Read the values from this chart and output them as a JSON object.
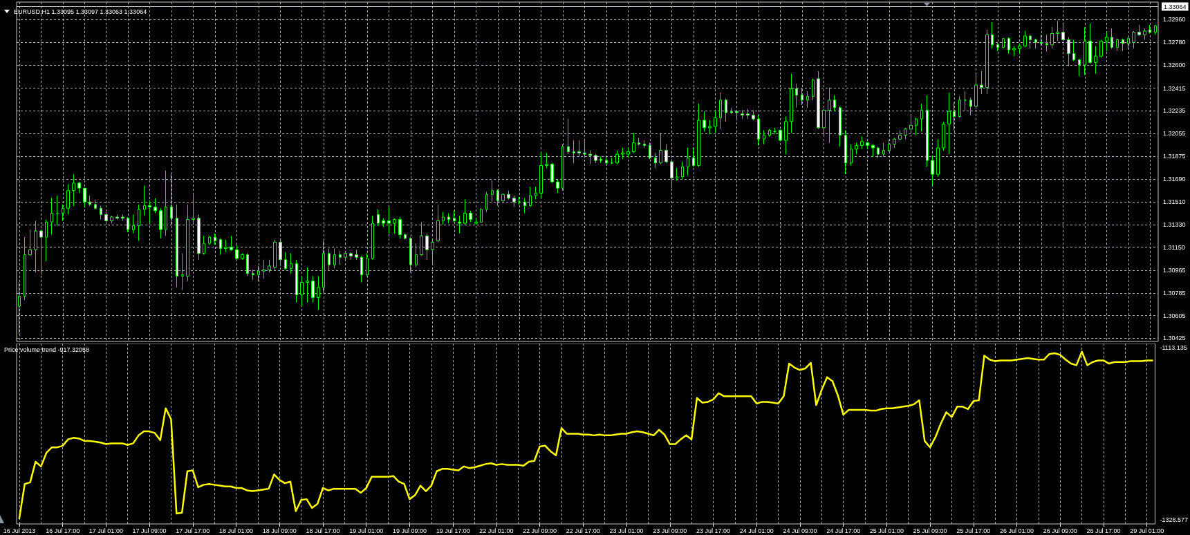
{
  "chart_data": [
    {
      "type": "candlestick",
      "title": "EURUSD,H1 1.33095 1.33097 1.33063 1.33064",
      "categories": [
        null,
        null,
        null,
        null,
        null,
        null,
        null,
        null,
        null,
        null,
        null,
        null,
        null,
        null,
        null,
        null,
        null,
        null,
        null,
        null,
        null,
        null,
        null,
        null,
        null,
        null,
        null,
        null,
        null,
        null,
        null,
        null,
        null,
        null,
        null,
        null,
        null,
        null,
        null,
        null,
        null,
        null,
        null,
        null,
        null,
        null,
        null,
        null,
        null,
        null,
        null,
        null,
        null,
        null,
        null,
        null,
        null,
        null,
        null,
        null,
        null,
        null,
        null,
        null,
        null,
        null,
        null,
        null,
        null,
        null,
        null,
        null,
        null,
        null,
        null,
        null,
        null,
        null,
        null,
        null,
        null,
        null,
        null,
        null,
        null,
        null,
        null,
        null,
        null,
        null,
        null,
        null,
        null,
        null,
        null,
        null,
        null,
        null,
        null,
        null,
        null,
        null,
        null,
        null,
        null,
        null,
        null,
        null,
        null,
        null,
        null,
        null,
        null,
        null,
        null,
        null,
        null,
        null,
        null,
        null,
        null,
        null,
        null,
        null,
        null,
        null,
        null,
        null,
        null,
        null,
        null,
        null,
        null,
        null,
        null,
        null,
        null,
        null,
        null,
        null,
        null,
        null,
        null,
        null,
        null,
        null,
        null,
        null,
        null,
        null,
        null,
        null,
        null,
        null,
        null,
        null,
        null,
        null,
        null,
        null,
        null,
        null,
        null,
        null,
        null,
        null,
        null,
        null,
        null,
        null,
        null,
        null,
        null,
        null,
        null,
        null,
        null,
        null,
        null,
        null,
        null,
        null,
        null,
        null,
        null,
        null,
        null,
        null,
        null,
        null,
        null,
        null,
        null,
        null,
        null,
        null,
        null,
        null,
        null,
        null,
        null,
        null,
        null,
        null,
        null,
        null,
        null,
        null,
        null,
        null
      ],
      "ohlc": [
        [
          1.3068,
          1.3087,
          1.3046,
          1.3076
        ],
        [
          1.3076,
          1.3123,
          1.3073,
          1.3109
        ],
        [
          1.3109,
          1.3129,
          1.3108,
          1.3113
        ],
        [
          1.3113,
          1.3136,
          1.3095,
          1.3128
        ],
        [
          1.3128,
          1.3129,
          1.3093,
          1.3123
        ],
        [
          1.3123,
          1.3137,
          1.3104,
          1.3135
        ],
        [
          1.3135,
          1.3154,
          1.3125,
          1.3142
        ],
        [
          1.3142,
          1.3156,
          1.3132,
          1.3142
        ],
        [
          1.3142,
          1.3149,
          1.3136,
          1.3146
        ],
        [
          1.3146,
          1.3165,
          1.3141,
          1.316
        ],
        [
          1.316,
          1.3173,
          1.3148,
          1.3166
        ],
        [
          1.3166,
          1.3167,
          1.3158,
          1.3162
        ],
        [
          1.3162,
          1.3162,
          1.3147,
          1.3151
        ],
        [
          1.3151,
          1.3156,
          1.3148,
          1.3149
        ],
        [
          1.3149,
          1.3153,
          1.3145,
          1.3146
        ],
        [
          1.3146,
          1.3148,
          1.3137,
          1.3141
        ],
        [
          1.3141,
          1.3143,
          1.3133,
          1.3136
        ],
        [
          1.3136,
          1.314,
          1.3134,
          1.3139
        ],
        [
          1.3139,
          1.3141,
          1.3137,
          1.3138
        ],
        [
          1.3139,
          1.3141,
          1.3136,
          1.3138
        ],
        [
          1.3138,
          1.3139,
          1.3127,
          1.3129
        ],
        [
          1.3129,
          1.3141,
          1.3126,
          1.3132
        ],
        [
          1.3132,
          1.3149,
          1.312,
          1.3145
        ],
        [
          1.3145,
          1.3164,
          1.314,
          1.3148
        ],
        [
          1.3148,
          1.3152,
          1.3134,
          1.3147
        ],
        [
          1.3147,
          1.3154,
          1.3142,
          1.3144
        ],
        [
          1.3144,
          1.3146,
          1.3122,
          1.3129
        ],
        [
          1.3129,
          1.3176,
          1.3124,
          1.3147
        ],
        [
          1.3147,
          1.3173,
          1.3133,
          1.3138
        ],
        [
          1.3138,
          1.3149,
          1.3083,
          1.3092
        ],
        [
          1.3092,
          1.311,
          1.3081,
          1.3093
        ],
        [
          1.3092,
          1.3149,
          1.3088,
          1.3137
        ],
        [
          1.3137,
          1.3158,
          1.3133,
          1.3138
        ],
        [
          1.3138,
          1.3141,
          1.3105,
          1.311
        ],
        [
          1.311,
          1.3124,
          1.3109,
          1.3118
        ],
        [
          1.3118,
          1.3124,
          1.3117,
          1.3123
        ],
        [
          1.3123,
          1.3126,
          1.3117,
          1.312
        ],
        [
          1.3121,
          1.3122,
          1.3109,
          1.3114
        ],
        [
          1.3114,
          1.3121,
          1.3111,
          1.3115
        ],
        [
          1.3115,
          1.3124,
          1.3112,
          1.3113
        ],
        [
          1.3113,
          1.3117,
          1.3105,
          1.3106
        ],
        [
          1.3106,
          1.311,
          1.3105,
          1.3109
        ],
        [
          1.3109,
          1.311,
          1.3092,
          1.3094
        ],
        [
          1.3094,
          1.3097,
          1.3089,
          1.3093
        ],
        [
          1.3093,
          1.31,
          1.3088,
          1.3096
        ],
        [
          1.3096,
          1.3105,
          1.309,
          1.3097
        ],
        [
          1.3097,
          1.3105,
          1.3095,
          1.31
        ],
        [
          1.3099,
          1.3121,
          1.3097,
          1.3119
        ],
        [
          1.3119,
          1.3121,
          1.31,
          1.3105
        ],
        [
          1.3105,
          1.3111,
          1.3097,
          1.3098
        ],
        [
          1.3098,
          1.311,
          1.3094,
          1.3102
        ],
        [
          1.3102,
          1.3105,
          1.3071,
          1.3077
        ],
        [
          1.3077,
          1.3092,
          1.3068,
          1.3087
        ],
        [
          1.3087,
          1.3099,
          1.3071,
          1.3088
        ],
        [
          1.3088,
          1.3092,
          1.3071,
          1.3075
        ],
        [
          1.3075,
          1.3092,
          1.3065,
          1.3083
        ],
        [
          1.3083,
          1.312,
          1.3079,
          1.311
        ],
        [
          1.311,
          1.3114,
          1.3096,
          1.3101
        ],
        [
          1.3101,
          1.3114,
          1.3098,
          1.3109
        ],
        [
          1.3109,
          1.3112,
          1.3101,
          1.3107
        ],
        [
          1.3107,
          1.3112,
          1.3105,
          1.311
        ],
        [
          1.311,
          1.3111,
          1.3105,
          1.3108
        ],
        [
          1.3109,
          1.3113,
          1.3105,
          1.3107
        ],
        [
          1.3107,
          1.3108,
          1.3087,
          1.3093
        ],
        [
          1.3093,
          1.311,
          1.3092,
          1.3106
        ],
        [
          1.3106,
          1.314,
          1.3105,
          1.3134
        ],
        [
          1.3141,
          1.3145,
          1.3132,
          1.3134
        ],
        [
          1.3136,
          1.3138,
          1.3131,
          1.3134
        ],
        [
          1.3136,
          1.3147,
          1.3126,
          1.3134
        ],
        [
          1.3134,
          1.3138,
          1.3126,
          1.3137
        ],
        [
          1.3137,
          1.3139,
          1.3122,
          1.3125
        ],
        [
          1.3125,
          1.3126,
          1.3121,
          1.3122
        ],
        [
          1.3122,
          1.3123,
          1.3095,
          1.3101
        ],
        [
          1.3101,
          1.3118,
          1.3099,
          1.3109
        ],
        [
          1.3109,
          1.3135,
          1.3108,
          1.3124
        ],
        [
          1.3124,
          1.3126,
          1.3105,
          1.3113
        ],
        [
          1.3113,
          1.3121,
          1.3101,
          1.3119
        ],
        [
          1.312,
          1.3149,
          1.3119,
          1.3136
        ],
        [
          1.3136,
          1.3143,
          1.3133,
          1.3139
        ],
        [
          1.3139,
          1.3142,
          1.3134,
          1.3137
        ],
        [
          1.3138,
          1.3144,
          1.3135,
          1.3136
        ],
        [
          1.3135,
          1.314,
          1.3126,
          1.3134
        ],
        [
          1.3134,
          1.3153,
          1.3133,
          1.3142
        ],
        [
          1.3142,
          1.3144,
          1.3135,
          1.3137
        ],
        [
          1.3134,
          1.3138,
          1.3133,
          1.3135
        ],
        [
          1.3135,
          1.3146,
          1.3134,
          1.3145
        ],
        [
          1.3145,
          1.3159,
          1.3143,
          1.3157
        ],
        [
          1.3157,
          1.3168,
          1.3151,
          1.316
        ],
        [
          1.316,
          1.3161,
          1.3148,
          1.3152
        ],
        [
          1.3152,
          1.3158,
          1.315,
          1.3157
        ],
        [
          1.3157,
          1.316,
          1.3153,
          1.3154
        ],
        [
          1.3154,
          1.3156,
          1.3147,
          1.3151
        ],
        [
          1.3151,
          1.3155,
          1.3149,
          1.3151
        ],
        [
          1.3151,
          1.3154,
          1.3142,
          1.3148
        ],
        [
          1.3148,
          1.3163,
          1.3147,
          1.3156
        ],
        [
          1.3156,
          1.3163,
          1.3153,
          1.3158
        ],
        [
          1.3158,
          1.319,
          1.3154,
          1.318
        ],
        [
          1.318,
          1.319,
          1.3178,
          1.3181
        ],
        [
          1.3181,
          1.3182,
          1.3166,
          1.3167
        ],
        [
          1.3167,
          1.3169,
          1.3158,
          1.3162
        ],
        [
          1.3162,
          1.3197,
          1.316,
          1.3195
        ],
        [
          1.3195,
          1.3217,
          1.3189,
          1.3191
        ],
        [
          1.3191,
          1.32,
          1.3182,
          1.319
        ],
        [
          1.3191,
          1.32,
          1.3187,
          1.319
        ],
        [
          1.319,
          1.32,
          1.3187,
          1.3189
        ],
        [
          1.3189,
          1.3192,
          1.3181,
          1.3188
        ],
        [
          1.3188,
          1.3189,
          1.3182,
          1.3184
        ],
        [
          1.3185,
          1.3187,
          1.3182,
          1.3184
        ],
        [
          1.3184,
          1.3186,
          1.3181,
          1.3182
        ],
        [
          1.3182,
          1.3186,
          1.3181,
          1.3182
        ],
        [
          1.3182,
          1.3192,
          1.3181,
          1.3189
        ],
        [
          1.3189,
          1.3194,
          1.3185,
          1.319
        ],
        [
          1.3189,
          1.3194,
          1.3186,
          1.3191
        ],
        [
          1.3191,
          1.3206,
          1.319,
          1.3198
        ],
        [
          1.3198,
          1.3202,
          1.3196,
          1.3197
        ],
        [
          1.3197,
          1.32,
          1.3194,
          1.3196
        ],
        [
          1.3196,
          1.3198,
          1.3185,
          1.3186
        ],
        [
          1.3186,
          1.319,
          1.3178,
          1.3182
        ],
        [
          1.3182,
          1.3206,
          1.3181,
          1.3192
        ],
        [
          1.3192,
          1.3197,
          1.3182,
          1.3183
        ],
        [
          1.3183,
          1.3185,
          1.3162,
          1.317
        ],
        [
          1.317,
          1.3178,
          1.3168,
          1.3171
        ],
        [
          1.3171,
          1.3183,
          1.3169,
          1.3179
        ],
        [
          1.3179,
          1.3194,
          1.3172,
          1.3186
        ],
        [
          1.3186,
          1.3194,
          1.3179,
          1.318
        ],
        [
          1.318,
          1.3229,
          1.3179,
          1.3216
        ],
        [
          1.3216,
          1.3223,
          1.3207,
          1.321
        ],
        [
          1.321,
          1.3216,
          1.3205,
          1.3211
        ],
        [
          1.3211,
          1.3224,
          1.3206,
          1.3218
        ],
        [
          1.3218,
          1.3238,
          1.3209,
          1.3232
        ],
        [
          1.3232,
          1.3233,
          1.3215,
          1.3222
        ],
        [
          1.3223,
          1.3226,
          1.3221,
          1.3222
        ],
        [
          1.3223,
          1.3224,
          1.3216,
          1.3222
        ],
        [
          1.3221,
          1.3224,
          1.3217,
          1.322
        ],
        [
          1.3221,
          1.3225,
          1.3217,
          1.322
        ],
        [
          1.322,
          1.3224,
          1.3216,
          1.3217
        ],
        [
          1.3217,
          1.322,
          1.3196,
          1.3201
        ],
        [
          1.3201,
          1.3208,
          1.3197,
          1.3204
        ],
        [
          1.3204,
          1.3209,
          1.3203,
          1.3208
        ],
        [
          1.3207,
          1.321,
          1.3205,
          1.3207
        ],
        [
          1.3208,
          1.3209,
          1.3199,
          1.32
        ],
        [
          1.32,
          1.3219,
          1.3189,
          1.3215
        ],
        [
          1.3215,
          1.3253,
          1.3206,
          1.3241
        ],
        [
          1.3241,
          1.3245,
          1.3226,
          1.3236
        ],
        [
          1.3236,
          1.3241,
          1.3228,
          1.3232
        ],
        [
          1.3232,
          1.3239,
          1.3226,
          1.3235
        ],
        [
          1.3235,
          1.3249,
          1.3232,
          1.3248
        ],
        [
          1.3249,
          1.3255,
          1.3209,
          1.321
        ],
        [
          1.321,
          1.3225,
          1.3203,
          1.3224
        ],
        [
          1.3224,
          1.3242,
          1.3198,
          1.3232
        ],
        [
          1.3232,
          1.3236,
          1.3223,
          1.3226
        ],
        [
          1.3226,
          1.3227,
          1.3195,
          1.3204
        ],
        [
          1.3204,
          1.3208,
          1.3173,
          1.3182
        ],
        [
          1.3182,
          1.3197,
          1.318,
          1.3193
        ],
        [
          1.3193,
          1.3198,
          1.3189,
          1.3196
        ],
        [
          1.3196,
          1.3203,
          1.3193,
          1.3199
        ],
        [
          1.3198,
          1.3199,
          1.3193,
          1.3196
        ],
        [
          1.3196,
          1.3197,
          1.3187,
          1.3194
        ],
        [
          1.3194,
          1.3195,
          1.3186,
          1.3189
        ],
        [
          1.3189,
          1.3198,
          1.3187,
          1.3192
        ],
        [
          1.3192,
          1.32,
          1.3191,
          1.3197
        ],
        [
          1.3197,
          1.3202,
          1.3194,
          1.3201
        ],
        [
          1.3201,
          1.3208,
          1.32,
          1.3204
        ],
        [
          1.3204,
          1.321,
          1.3201,
          1.3209
        ],
        [
          1.3209,
          1.322,
          1.3208,
          1.3212
        ],
        [
          1.3212,
          1.3218,
          1.3204,
          1.3217
        ],
        [
          1.3217,
          1.3229,
          1.3207,
          1.3224
        ],
        [
          1.3224,
          1.3236,
          1.3179,
          1.3184
        ],
        [
          1.3184,
          1.3188,
          1.3164,
          1.3173
        ],
        [
          1.3173,
          1.3201,
          1.3171,
          1.3194
        ],
        [
          1.3194,
          1.3215,
          1.3192,
          1.3213
        ],
        [
          1.3213,
          1.3238,
          1.3189,
          1.3223
        ],
        [
          1.3223,
          1.323,
          1.3208,
          1.3219
        ],
        [
          1.3219,
          1.3235,
          1.3218,
          1.3232
        ],
        [
          1.3232,
          1.3239,
          1.3224,
          1.3232
        ],
        [
          1.3232,
          1.3234,
          1.322,
          1.3227
        ],
        [
          1.3227,
          1.3253,
          1.3225,
          1.3244
        ],
        [
          1.3244,
          1.3255,
          1.3237,
          1.3242
        ],
        [
          1.3242,
          1.3288,
          1.3237,
          1.3284
        ],
        [
          1.3284,
          1.3294,
          1.3273,
          1.3276
        ],
        [
          1.3276,
          1.3277,
          1.3271,
          1.3274
        ],
        [
          1.3274,
          1.3281,
          1.3273,
          1.3281
        ],
        [
          1.3281,
          1.3282,
          1.3269,
          1.3272
        ],
        [
          1.3272,
          1.3275,
          1.3267,
          1.3273
        ],
        [
          1.3273,
          1.3277,
          1.3269,
          1.3275
        ],
        [
          1.3275,
          1.3287,
          1.3274,
          1.3283
        ],
        [
          1.3283,
          1.3284,
          1.3273,
          1.328
        ],
        [
          1.328,
          1.3281,
          1.3273,
          1.3278
        ],
        [
          1.3278,
          1.3284,
          1.3275,
          1.3277
        ],
        [
          1.3277,
          1.3284,
          1.3271,
          1.3276
        ],
        [
          1.3276,
          1.329,
          1.3273,
          1.3285
        ],
        [
          1.3285,
          1.3295,
          1.3279,
          1.3286
        ],
        [
          1.3286,
          1.3293,
          1.3279,
          1.328
        ],
        [
          1.328,
          1.3282,
          1.3259,
          1.3269
        ],
        [
          1.3269,
          1.328,
          1.3263,
          1.3264
        ],
        [
          1.3264,
          1.3265,
          1.3251,
          1.326
        ],
        [
          1.326,
          1.329,
          1.3252,
          1.3279
        ],
        [
          1.3279,
          1.3293,
          1.3261,
          1.3262
        ],
        [
          1.3262,
          1.3275,
          1.3253,
          1.3267
        ],
        [
          1.3267,
          1.328,
          1.3266,
          1.3279
        ],
        [
          1.3279,
          1.3286,
          1.3271,
          1.3282
        ],
        [
          1.3282,
          1.3289,
          1.3273,
          1.3274
        ],
        [
          1.3274,
          1.3281,
          1.3271,
          1.328
        ],
        [
          1.328,
          1.3281,
          1.3271,
          1.3277
        ],
        [
          1.3277,
          1.3282,
          1.3273,
          1.3281
        ],
        [
          1.3278,
          1.3287,
          1.3273,
          1.3286
        ],
        [
          1.3286,
          1.3292,
          1.3283,
          1.3284
        ],
        [
          1.3284,
          1.3289,
          1.328,
          1.3287
        ],
        [
          1.3288,
          1.3292,
          1.3285,
          1.3286
        ],
        [
          1.3286,
          1.3292,
          1.3284,
          1.3291
        ]
      ],
      "color": "#00ff00",
      "ylim": [
        1.304,
        1.331
      ],
      "yticks": [
        1.30425,
        1.30605,
        1.30785,
        1.30965,
        {
          "value": 1.3115,
          "label": "1.31150"
        },
        {
          "value": 1.3133,
          "label": "1.31330"
        },
        {
          "value": 1.3151,
          "label": "1.31510"
        },
        {
          "value": 1.3169,
          "label": "1.31690"
        },
        1.31875,
        1.32055,
        1.32235,
        1.32415,
        {
          "value": 1.326,
          "label": "1.32600"
        },
        {
          "value": 1.3278,
          "label": "1.32780"
        },
        {
          "value": 1.3296,
          "label": "1.32960"
        }
      ],
      "ref_lines": [
        {
          "axis": "y",
          "value": 1.33064,
          "label": "1.33064",
          "color": "#c0c8d0"
        }
      ],
      "grid": true,
      "tick_labels": "y"
    },
    {
      "type": "line",
      "title": "Price volume trend -917.32058",
      "categories": [
        "16 Jul 2013",
        null,
        null,
        null,
        null,
        null,
        null,
        null,
        "16 Jul 17:00",
        null,
        null,
        null,
        null,
        null,
        null,
        null,
        "17 Jul 01:00",
        null,
        null,
        null,
        null,
        null,
        null,
        null,
        "17 Jul 09:00",
        null,
        null,
        null,
        null,
        null,
        null,
        null,
        "17 Jul 17:00",
        null,
        null,
        null,
        null,
        null,
        null,
        null,
        "18 Jul 01:00",
        null,
        null,
        null,
        null,
        null,
        null,
        null,
        "18 Jul 09:00",
        null,
        null,
        null,
        null,
        null,
        null,
        null,
        "18 Jul 17:00",
        null,
        null,
        null,
        null,
        null,
        null,
        null,
        "19 Jul 01:00",
        null,
        null,
        null,
        null,
        null,
        null,
        null,
        "19 Jul 09:00",
        null,
        null,
        null,
        null,
        null,
        null,
        null,
        "19 Jul 17:00",
        null,
        null,
        null,
        null,
        null,
        null,
        null,
        "22 Jul 01:00",
        null,
        null,
        null,
        null,
        null,
        null,
        null,
        "22 Jul 09:00",
        null,
        null,
        null,
        null,
        null,
        null,
        null,
        "22 Jul 17:00",
        null,
        null,
        null,
        null,
        null,
        null,
        null,
        "23 Jul 01:00",
        null,
        null,
        null,
        null,
        null,
        null,
        null,
        "23 Jul 09:00",
        null,
        null,
        null,
        null,
        null,
        null,
        null,
        "23 Jul 17:00",
        null,
        null,
        null,
        null,
        null,
        null,
        null,
        "24 Jul 01:00",
        null,
        null,
        null,
        null,
        null,
        null,
        null,
        "24 Jul 09:00",
        null,
        null,
        null,
        null,
        null,
        null,
        null,
        "24 Jul 17:00",
        null,
        null,
        null,
        null,
        null,
        null,
        null,
        "25 Jul 01:00",
        null,
        null,
        null,
        null,
        null,
        null,
        null,
        "25 Jul 09:00",
        null,
        null,
        null,
        null,
        null,
        null,
        null,
        "25 Jul 17:00",
        null,
        null,
        null,
        null,
        null,
        null,
        null,
        "26 Jul 01:00",
        null,
        null,
        null,
        null,
        null,
        null,
        null,
        "26 Jul 09:00",
        null,
        null,
        null,
        null,
        null,
        null,
        null,
        "26 Jul 17:00",
        null,
        null,
        null,
        null,
        null,
        null,
        null,
        "29 Jul 01:00",
        null
      ],
      "series": [
        {
          "color": "#ffff00",
          "values": [
            -1327,
            -1284,
            -1282,
            -1256,
            -1262,
            -1245,
            -1238,
            -1238,
            -1236,
            -1228,
            -1226,
            -1227,
            -1230,
            -1230,
            -1231,
            -1232,
            -1234,
            -1233,
            -1233,
            -1233,
            -1235,
            -1233,
            -1223,
            -1218,
            -1218,
            -1220,
            -1229,
            -1189,
            -1203,
            -1321,
            -1320,
            -1268,
            -1267,
            -1288,
            -1285,
            -1284,
            -1285,
            -1286,
            -1287,
            -1287,
            -1289,
            -1289,
            -1292,
            -1293,
            -1292,
            -1291,
            -1290,
            -1272,
            -1279,
            -1283,
            -1281,
            -1318,
            -1304,
            -1303,
            -1314,
            -1309,
            -1289,
            -1292,
            -1290,
            -1290,
            -1290,
            -1290,
            -1290,
            -1295,
            -1289,
            -1275,
            -1275,
            -1275,
            -1275,
            -1274,
            -1281,
            -1284,
            -1303,
            -1298,
            -1286,
            -1293,
            -1286,
            -1268,
            -1265,
            -1265,
            -1266,
            -1267,
            -1262,
            -1264,
            -1263,
            -1261,
            -1259,
            -1258,
            -1260,
            -1259,
            -1260,
            -1260,
            -1260,
            -1261,
            -1256,
            -1255,
            -1237,
            -1236,
            -1243,
            -1248,
            -1214,
            -1221,
            -1221,
            -1221,
            -1222,
            -1222,
            -1223,
            -1222,
            -1223,
            -1223,
            -1222,
            -1221,
            -1221,
            -1219,
            -1218,
            -1219,
            -1221,
            -1223,
            -1216,
            -1222,
            -1234,
            -1234,
            -1228,
            -1223,
            -1228,
            -1176,
            -1182,
            -1181,
            -1178,
            -1170,
            -1174,
            -1174,
            -1174,
            -1174,
            -1174,
            -1174,
            -1183,
            -1181,
            -1181,
            -1182,
            -1183,
            -1174,
            -1133,
            -1138,
            -1141,
            -1139,
            -1132,
            -1185,
            -1166,
            -1150,
            -1155,
            -1173,
            -1197,
            -1191,
            -1191,
            -1191,
            -1191,
            -1192,
            -1192,
            -1190,
            -1189,
            -1189,
            -1188,
            -1187,
            -1186,
            -1184,
            -1179,
            -1230,
            -1238,
            -1225,
            -1208,
            -1194,
            -1200,
            -1187,
            -1187,
            -1190,
            -1180,
            -1179,
            -1123,
            -1128,
            -1130,
            -1129,
            -1129,
            -1129,
            -1128,
            -1127,
            -1126,
            -1127,
            -1128,
            -1128,
            -1121,
            -1120,
            -1122,
            -1128,
            -1133,
            -1135,
            -1118,
            -1135,
            -1131,
            -1129,
            -1129,
            -1133,
            -1131,
            -1131,
            -1131,
            -1130,
            -1130,
            -1130,
            -1129,
            -1129
          ]
        }
      ],
      "ylim": [
        -1334.1,
        -1107.8
      ],
      "yticks": [
        -1328.577,
        -1113.135
      ],
      "grid": "x",
      "marker": "none"
    }
  ]
}
